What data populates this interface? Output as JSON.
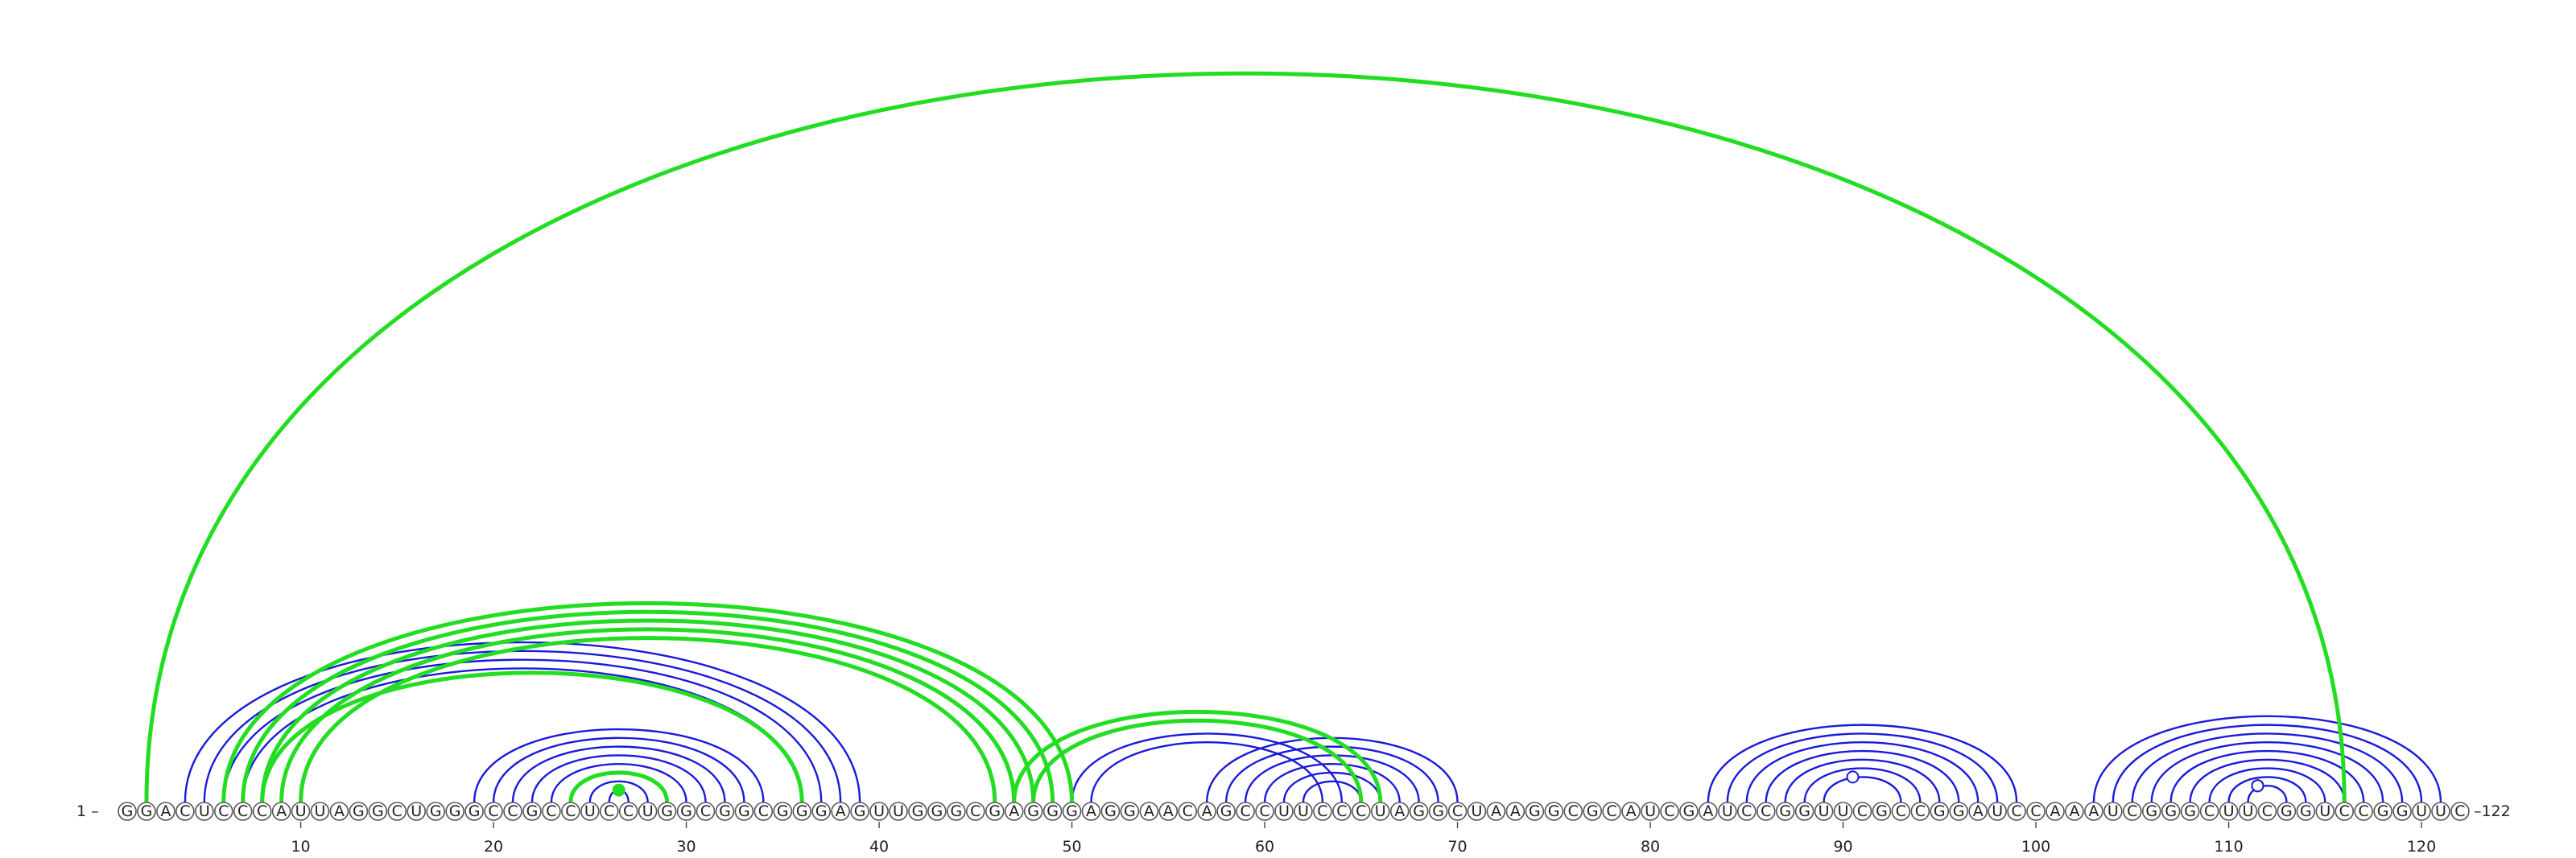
{
  "sequence": "GGACUCCCAUUAGGCUGGGCCGCCUCCUGGCGGCGGGAGUUGGGCGAGGGAGGAACAGCCUUCCCUAGGCUAAGGCGCAUCGAUCCGGUUCGCCGGAUCCAAAUCGGGCUUCGGUCCGGUUC",
  "start_label": "1 –",
  "end_label": "–122",
  "tick_labels": [
    "10",
    "20",
    "30",
    "40",
    "50",
    "60",
    "70",
    "80",
    "90",
    "100",
    "110",
    "120"
  ],
  "tick_positions": [
    10,
    20,
    30,
    40,
    50,
    60,
    70,
    80,
    90,
    100,
    110,
    120
  ],
  "colors": {
    "blue": "#1a1adc",
    "green": "#22dd22"
  },
  "blue_helices": [
    {
      "i": 4,
      "j": 39,
      "n": 4
    },
    {
      "i": 19,
      "j": 34,
      "n": 8
    },
    {
      "i": 50,
      "j": 64,
      "n": 2
    },
    {
      "i": 57,
      "j": 70,
      "n": 6
    },
    {
      "i": 83,
      "j": 99,
      "n": 7
    },
    {
      "i": 103,
      "j": 121,
      "n": 10
    }
  ],
  "green_helices": [
    {
      "i": 2,
      "j": 116,
      "n": 1
    },
    {
      "i": 6,
      "j": 50,
      "n": 5
    },
    {
      "i": 8,
      "j": 36,
      "n": 1
    },
    {
      "i": 24,
      "j": 29,
      "n": 1
    },
    {
      "i": 47,
      "j": 66,
      "n": 2
    }
  ],
  "blue_markers": [
    {
      "pos": 90.5,
      "level": 1,
      "filled": false
    },
    {
      "pos": 111.5,
      "level": 1,
      "filled": false
    },
    {
      "pos": 111.5,
      "level": 3,
      "filled": false
    },
    {
      "pos": 111.5,
      "level": 6,
      "filled": false
    }
  ],
  "green_markers": [
    {
      "pos": 26.5,
      "level": 0,
      "filled": true
    }
  ]
}
